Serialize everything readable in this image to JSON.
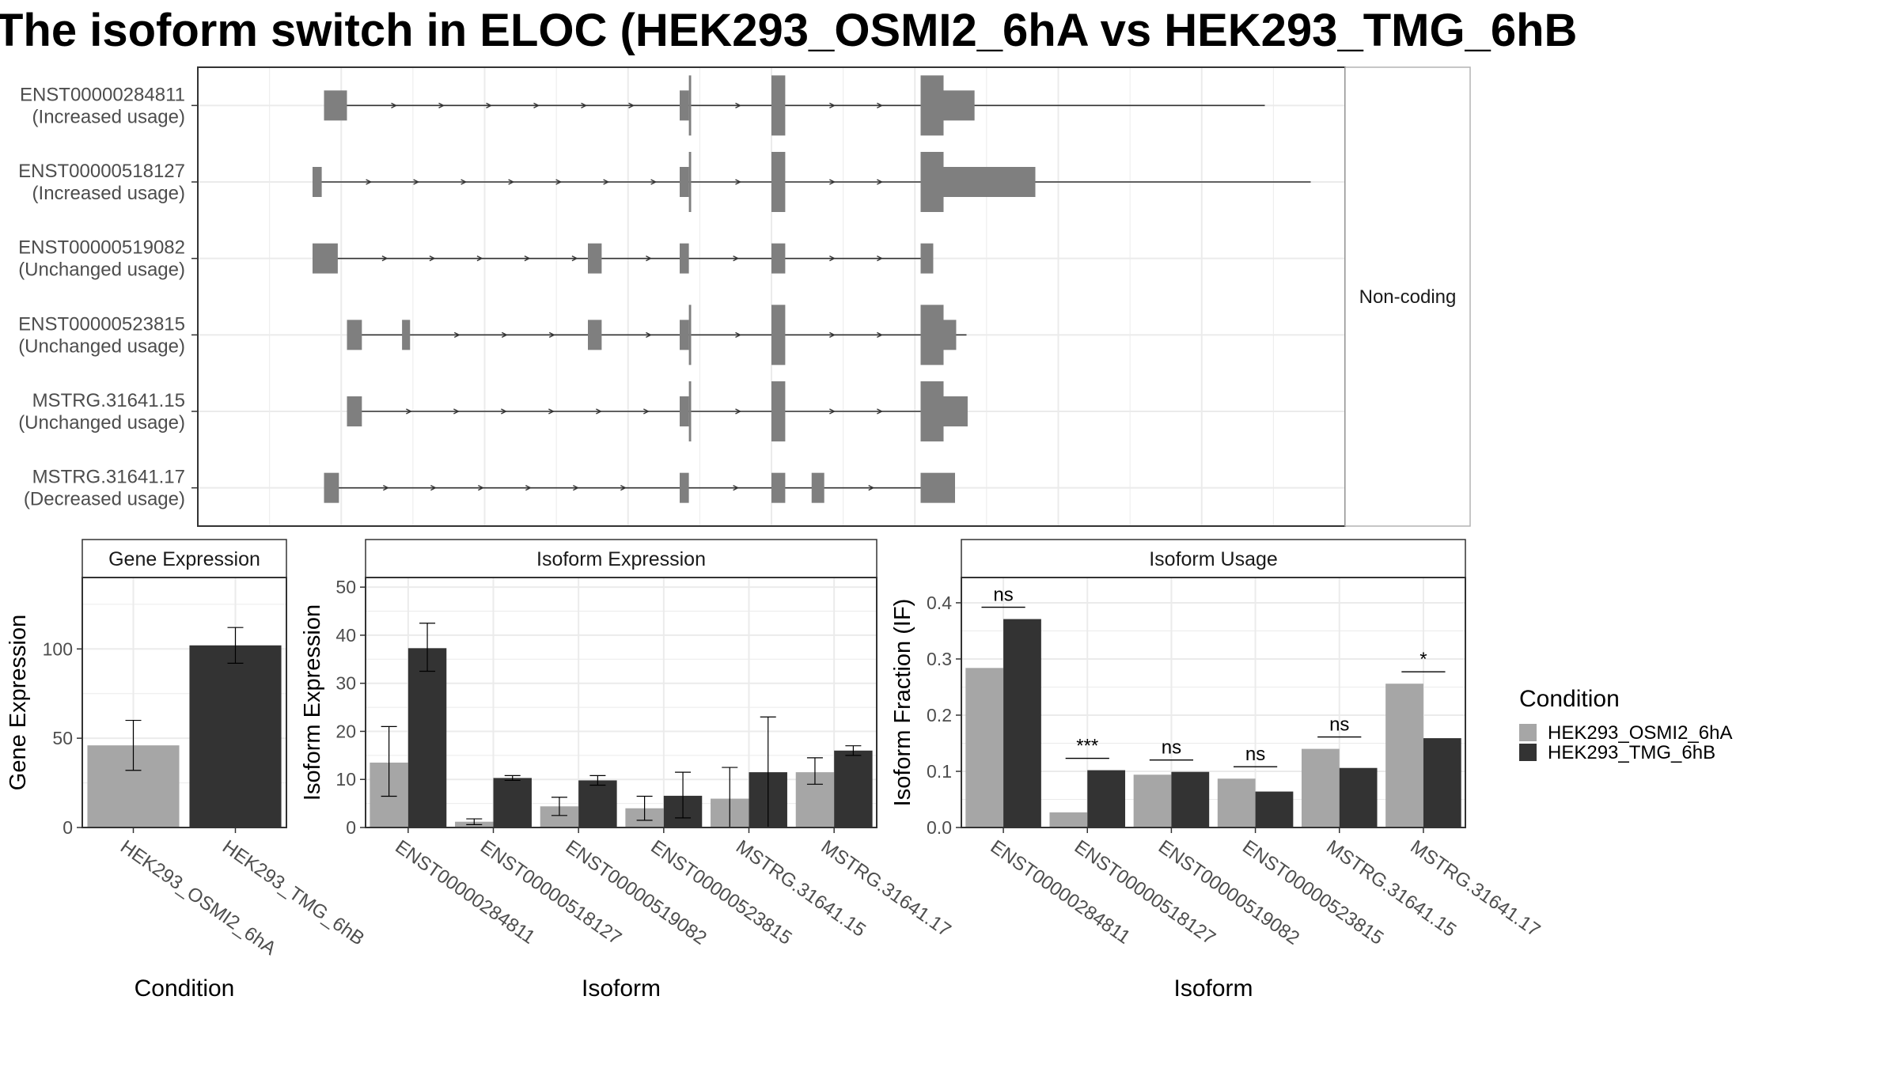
{
  "title": "The isoform switch in ELOC (HEK293_OSMI2_6hA vs HEK293_TMG_6hB",
  "colors": {
    "cond1": "#a6a6a6",
    "cond2": "#333333",
    "exon": "#7f7f7f",
    "line": "#333333",
    "grid": "#ebebeb"
  },
  "structure": {
    "strip_label": "Non-coding",
    "transcripts": [
      {
        "id": "ENST00000284811",
        "usage": "(Increased usage)",
        "start": 0.11,
        "end": 0.93,
        "exons": [
          [
            0.11,
            0.13,
            "n"
          ],
          [
            0.42,
            0.428,
            "n"
          ],
          [
            0.428,
            0.43,
            "w"
          ],
          [
            0.5,
            0.512,
            "w"
          ],
          [
            0.63,
            0.65,
            "w"
          ],
          [
            0.65,
            0.677,
            "n"
          ]
        ]
      },
      {
        "id": "ENST00000518127",
        "usage": "(Increased usage)",
        "start": 0.1,
        "end": 0.97,
        "exons": [
          [
            0.1,
            0.108,
            "n"
          ],
          [
            0.42,
            0.428,
            "n"
          ],
          [
            0.428,
            0.43,
            "w"
          ],
          [
            0.5,
            0.512,
            "w"
          ],
          [
            0.63,
            0.65,
            "w"
          ],
          [
            0.65,
            0.73,
            "n"
          ]
        ]
      },
      {
        "id": "ENST00000519082",
        "usage": "(Unchanged usage)",
        "start": 0.1,
        "end": 0.64,
        "exons": [
          [
            0.1,
            0.122,
            "n"
          ],
          [
            0.34,
            0.352,
            "n"
          ],
          [
            0.42,
            0.428,
            "n"
          ],
          [
            0.5,
            0.512,
            "n"
          ],
          [
            0.63,
            0.641,
            "n"
          ]
        ]
      },
      {
        "id": "ENST00000523815",
        "usage": "(Unchanged usage)",
        "start": 0.13,
        "end": 0.67,
        "exons": [
          [
            0.13,
            0.143,
            "n"
          ],
          [
            0.178,
            0.185,
            "n"
          ],
          [
            0.34,
            0.352,
            "n"
          ],
          [
            0.42,
            0.428,
            "n"
          ],
          [
            0.428,
            0.43,
            "w"
          ],
          [
            0.5,
            0.512,
            "w"
          ],
          [
            0.63,
            0.65,
            "w"
          ],
          [
            0.65,
            0.661,
            "n"
          ]
        ]
      },
      {
        "id": "MSTRG.31641.15",
        "usage": "(Unchanged usage)",
        "start": 0.13,
        "end": 0.67,
        "exons": [
          [
            0.13,
            0.143,
            "n"
          ],
          [
            0.42,
            0.428,
            "n"
          ],
          [
            0.428,
            0.43,
            "w"
          ],
          [
            0.5,
            0.512,
            "w"
          ],
          [
            0.63,
            0.65,
            "w"
          ],
          [
            0.65,
            0.671,
            "n"
          ]
        ]
      },
      {
        "id": "MSTRG.31641.17",
        "usage": "(Decreased usage)",
        "start": 0.11,
        "end": 0.66,
        "exons": [
          [
            0.11,
            0.123,
            "n"
          ],
          [
            0.42,
            0.428,
            "n"
          ],
          [
            0.5,
            0.512,
            "n"
          ],
          [
            0.535,
            0.546,
            "n"
          ],
          [
            0.63,
            0.66,
            "n"
          ]
        ]
      }
    ]
  },
  "chart_data": [
    {
      "type": "bar",
      "title": "Gene Expression",
      "xlabel": "Condition",
      "ylabel": "Gene Expression",
      "ylim": [
        0,
        140
      ],
      "yticks": [
        0,
        50,
        100
      ],
      "categories": [
        "HEK293_OSMI2_6hA",
        "HEK293_TMG_6hB"
      ],
      "series": [
        {
          "values": [
            46,
            102
          ],
          "err_low": [
            32,
            92
          ],
          "err_high": [
            60,
            112
          ]
        }
      ]
    },
    {
      "type": "bar",
      "title": "Isoform Expression",
      "xlabel": "Isoform",
      "ylabel": "Isoform Expression",
      "ylim": [
        0,
        52
      ],
      "yticks": [
        0,
        10,
        20,
        30,
        40,
        50
      ],
      "categories": [
        "ENST00000284811",
        "ENST00000518127",
        "ENST00000519082",
        "ENST00000523815",
        "MSTRG.31641.15",
        "MSTRG.31641.17"
      ],
      "series": [
        {
          "name": "HEK293_OSMI2_6hA",
          "values": [
            13.5,
            1.2,
            4.4,
            4.0,
            6.0,
            11.5
          ],
          "err_low": [
            6.5,
            0.6,
            2.5,
            1.5,
            0.0,
            9.0
          ],
          "err_high": [
            21.0,
            1.8,
            6.3,
            6.5,
            12.5,
            14.5
          ]
        },
        {
          "name": "HEK293_TMG_6hB",
          "values": [
            37.3,
            10.3,
            9.8,
            6.6,
            11.5,
            16.0
          ],
          "err_low": [
            32.5,
            9.8,
            8.8,
            2.0,
            0.0,
            15.0
          ],
          "err_high": [
            42.5,
            10.8,
            10.8,
            11.5,
            23.0,
            17.0
          ]
        }
      ]
    },
    {
      "type": "bar",
      "title": "Isoform Usage",
      "xlabel": "Isoform",
      "ylabel": "Isoform Fraction (IF)",
      "ylim": [
        0,
        0.445
      ],
      "yticks": [
        0.0,
        0.1,
        0.2,
        0.3,
        0.4
      ],
      "ytick_labels": [
        "0.0",
        "0.1",
        "0.2",
        "0.3",
        "0.4"
      ],
      "categories": [
        "ENST00000284811",
        "ENST00000518127",
        "ENST00000519082",
        "ENST00000523815",
        "MSTRG.31641.15",
        "MSTRG.31641.17"
      ],
      "series": [
        {
          "name": "HEK293_OSMI2_6hA",
          "values": [
            0.284,
            0.027,
            0.094,
            0.087,
            0.14,
            0.256
          ]
        },
        {
          "name": "HEK293_TMG_6hB",
          "values": [
            0.371,
            0.102,
            0.099,
            0.064,
            0.106,
            0.159
          ]
        }
      ],
      "significance": [
        "ns",
        "***",
        "ns",
        "ns",
        "ns",
        "*"
      ]
    }
  ],
  "legend": {
    "title": "Condition",
    "items": [
      {
        "label": "HEK293_OSMI2_6hA",
        "color": "#a6a6a6"
      },
      {
        "label": "HEK293_TMG_6hB",
        "color": "#333333"
      }
    ]
  }
}
